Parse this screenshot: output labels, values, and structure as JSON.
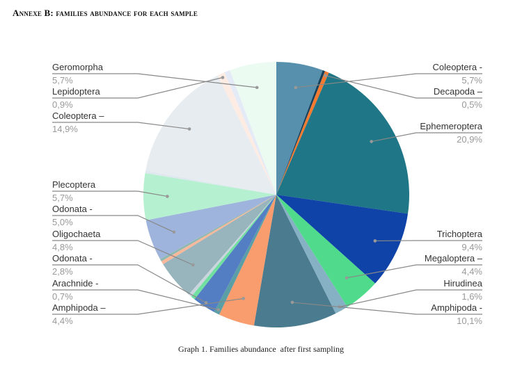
{
  "heading": "Annexe B: families abundance for each sample",
  "caption": "Graph 1. Families abundance  after first sampling",
  "chart_data": {
    "type": "pie",
    "title": "",
    "start": "top, clockwise",
    "slices": [
      {
        "name": "Coleoptera -",
        "label": "5,7%",
        "value": 5.7,
        "color": "#5690ad",
        "side": "right"
      },
      {
        "name": "",
        "label": "",
        "value": 0.3,
        "color": "#17405a"
      },
      {
        "name": "Decapoda –",
        "label": "0,5%",
        "value": 0.5,
        "color": "#f47a30",
        "side": "right"
      },
      {
        "name": "Ephemeroptera",
        "label": "20,9%",
        "value": 20.9,
        "color": "#1e7686",
        "side": "right"
      },
      {
        "name": "Trichoptera",
        "label": "9,4%",
        "value": 9.4,
        "color": "#1043a8",
        "side": "right"
      },
      {
        "name": "Megaloptera –",
        "label": "4,4%",
        "value": 4.4,
        "color": "#4fdb8b",
        "side": "right"
      },
      {
        "name": "Hirudinea",
        "label": "1,6%",
        "value": 1.6,
        "color": "#86b0c4",
        "side": "right"
      },
      {
        "name": "Amphipoda -",
        "label": "10,1%",
        "value": 10.1,
        "color": "#4b7b8f",
        "side": "right"
      },
      {
        "name": "Amphipoda –",
        "label": "4,4%",
        "value": 4.4,
        "color": "#f99c6e",
        "side": "left"
      },
      {
        "name": "Arachnide -",
        "label": "0,7%",
        "value": 0.7,
        "color": "#5a9ea6",
        "side": "left"
      },
      {
        "name": "Odonata -",
        "label": "2,8%",
        "value": 2.8,
        "color": "#547ec4",
        "side": "left"
      },
      {
        "name": "",
        "label": "",
        "value": 0.5,
        "color": "#6fe0a0"
      },
      {
        "name": "",
        "label": "",
        "value": 0.4,
        "color": "#c9d6de"
      },
      {
        "name": "Oligochaeta",
        "label": "4,8%",
        "value": 4.8,
        "color": "#98b4bd",
        "side": "left"
      },
      {
        "name": "",
        "label": "",
        "value": 0.4,
        "color": "#f9b89a"
      },
      {
        "name": "",
        "label": "",
        "value": 0.3,
        "color": "#8fb8b0"
      },
      {
        "name": "Odonata -",
        "label": "5,0%",
        "value": 5.0,
        "color": "#9fb4dc",
        "side": "left"
      },
      {
        "name": "Plecoptera",
        "label": "5,7%",
        "value": 5.7,
        "color": "#b5f0d0",
        "side": "left"
      },
      {
        "name": "",
        "label": "",
        "value": 0.3,
        "color": "#dfe8ee"
      },
      {
        "name": "Coleoptera –",
        "label": "14,9%",
        "value": 14.9,
        "color": "#e7ecf0",
        "side": "left"
      },
      {
        "name": "Lepidoptera",
        "label": "0,9%",
        "value": 0.9,
        "color": "#fdece4",
        "side": "left"
      },
      {
        "name": "",
        "label": "",
        "value": 0.7,
        "color": "#e4eaf6"
      },
      {
        "name": "Geromorpha",
        "label": "5,7%",
        "value": 5.7,
        "color": "#ecfbf2",
        "side": "left"
      }
    ],
    "legend": "leader-line labels on both sides",
    "name_color": "#333333",
    "value_color": "#999999",
    "leader_color": "#888888"
  }
}
